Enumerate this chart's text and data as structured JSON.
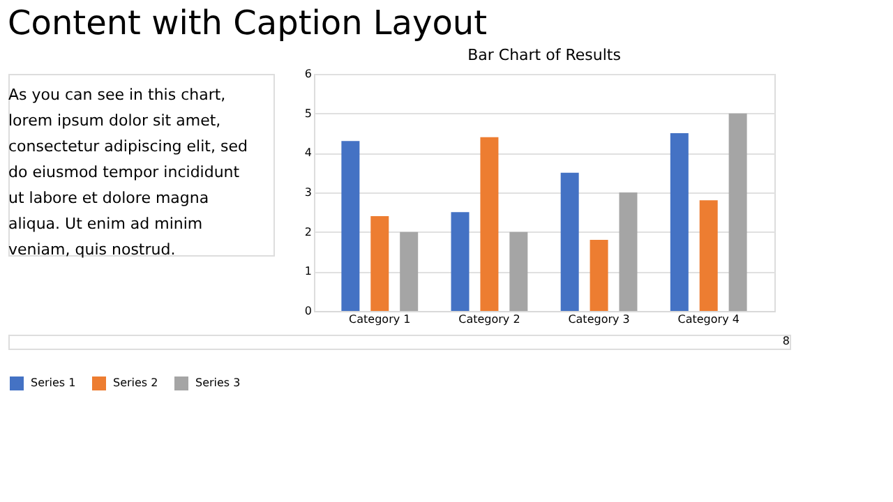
{
  "chart_data": {
    "type": "bar",
    "title": "Bar Chart of Results",
    "subtitle": "Content with Caption Layout",
    "annotations": [
      "As you can see in this chart,\nlorem ipsum dolor sit amet,\nconsectetur adipiscing elit, sed\ndo eiusmod tempor incididunt\nut labore et dolore magna\naliqua. Ut enim ad minim\nveniam, quis nostrud.",
      "8"
    ],
    "categories": [
      "Category 1",
      "Category 2",
      "Category 3",
      "Category 4"
    ],
    "series": [
      {
        "name": "Series 1",
        "color": "#4472c4",
        "values": [
          4.3,
          2.5,
          3.5,
          4.5
        ]
      },
      {
        "name": "Series 2",
        "color": "#ed7d31",
        "values": [
          2.4,
          4.4,
          1.8,
          2.8
        ]
      },
      {
        "name": "Series 3",
        "color": "#a5a5a5",
        "values": [
          2,
          2,
          3,
          5
        ]
      }
    ],
    "ylim": [
      0,
      6
    ],
    "yticks": [
      0,
      1,
      2,
      3,
      4,
      5,
      6
    ],
    "grid": "y",
    "legend": "bottom"
  }
}
